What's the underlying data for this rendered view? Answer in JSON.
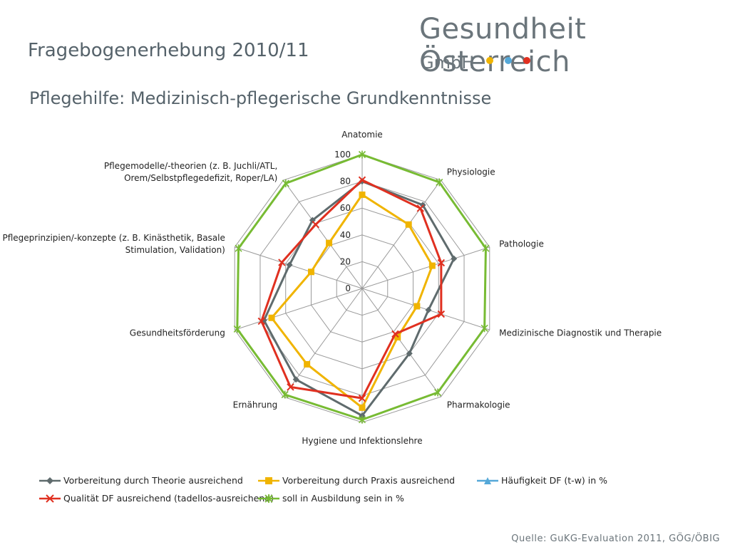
{
  "header": {
    "title": "Fragebogenerhebung 2010/11",
    "subtitle": "Pflegehilfe: Medizinisch-pflegerische Grundkenntnisse"
  },
  "logo": {
    "name": "Gesundheit Österreich",
    "sub": "GmbH",
    "dot_colors": [
      "#f0b400",
      "#55a8d8",
      "#e03020"
    ]
  },
  "source": "Quelle: GuKG-Evaluation 2011, GÖG/ÖBIG",
  "chart_data": {
    "type": "radar",
    "axes": [
      "Anatomie",
      "Physiologie",
      "Pathologie",
      "Medizinische Diagnostik und Therapie",
      "Pharmakologie",
      "Hygiene und Infektionslehre",
      "Ernährung",
      "Gesundheitsförderung",
      "Pflegeprinzipien/-konzepte (z. B. Kinästhetik, Basale Stimulation, Validation)",
      "Pflegemodelle/-theorien (z. B. Juchli/ATL, Orem/Selbstpflegedefizit, Roper/LA)"
    ],
    "axis_label_lines": [
      [
        "Anatomie"
      ],
      [
        "Physiologie"
      ],
      [
        "Pathologie"
      ],
      [
        "Medizinische Diagnostik und Therapie"
      ],
      [
        "Pharmakologie"
      ],
      [
        "Hygiene und Infektionslehre"
      ],
      [
        "Ernährung"
      ],
      [
        "Gesundheitsförderung"
      ],
      [
        "Pflegeprinzipien/-konzepte (z. B. Kinästhetik, Basale",
        "Stimulation, Validation)"
      ],
      [
        "Pflegemodelle/-theorien (z. B. Juchli/ATL,",
        "Orem/Selbstpflegedefizit, Roper/LA)"
      ]
    ],
    "ticks": [
      0,
      20,
      40,
      60,
      80,
      100
    ],
    "rmax": 100,
    "series": [
      {
        "name": "Vorbereitung durch Theorie ausreichend",
        "color": "#5f6b6d",
        "marker": "diamond",
        "values": [
          80,
          77,
          72,
          52,
          60,
          95,
          84,
          77,
          57,
          63
        ]
      },
      {
        "name": "Vorbereitung durch Praxis ausreichend",
        "color": "#f0b400",
        "marker": "square",
        "values": [
          70,
          59,
          55,
          43,
          45,
          89,
          70,
          71,
          40,
          42
        ]
      },
      {
        "name": "Häufigkeit DF (t-w) in %",
        "color": "#55a8d8",
        "marker": "triangle",
        "values": []
      },
      {
        "name": "Qualität DF ausreichend (tadellos-ausreichend)",
        "color": "#e03020",
        "marker": "x",
        "values": [
          81,
          74,
          62,
          62,
          42,
          82,
          91,
          79,
          63,
          59
        ]
      },
      {
        "name": "soll in Ausbildung sein in %",
        "color": "#77bb33",
        "marker": "star",
        "values": [
          100,
          98,
          97,
          96,
          96,
          98,
          98,
          98,
          97,
          97
        ]
      }
    ]
  }
}
